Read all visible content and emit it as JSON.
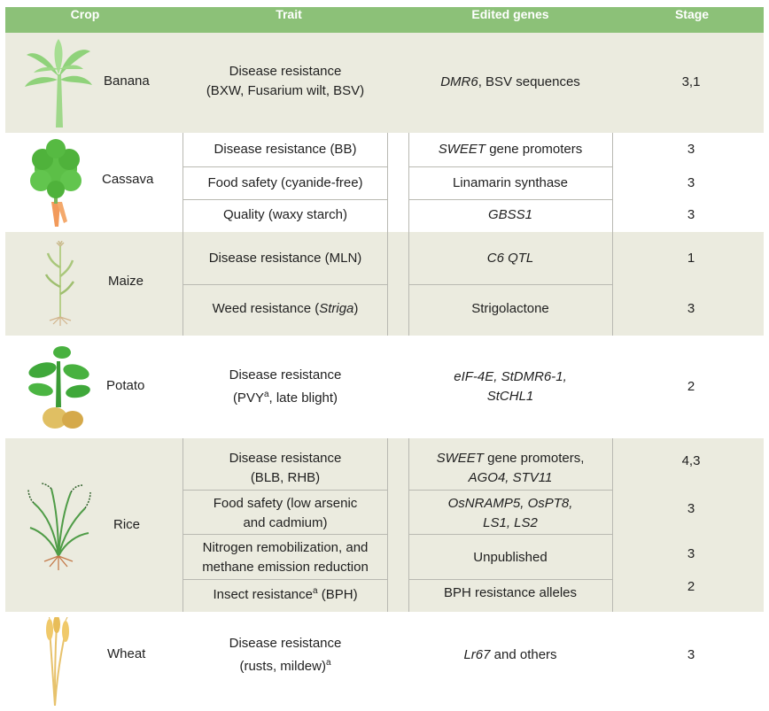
{
  "header": {
    "crop": "Crop",
    "trait": "Trait",
    "genes": "Edited genes",
    "stage": "Stage"
  },
  "colors": {
    "header_green": "#8cc178",
    "band_beige": "#ebebdf",
    "divider": "#b9b9b2"
  },
  "rows": {
    "banana": {
      "crop": "Banana",
      "icon": "banana-plant-icon",
      "traits": [
        {
          "l1": "Disease resistance",
          "l2": "(BXW, Fusarium wilt, BSV)",
          "genes_it": "DMR6",
          "genes": ", BSV sequences",
          "stage": "3,1"
        }
      ]
    },
    "cassava": {
      "crop": "Cassava",
      "icon": "cassava-plant-icon",
      "traits": [
        {
          "trait": "Disease resistance (BB)",
          "genes_it": "SWEET",
          "genes": " gene promoters",
          "stage": "3"
        },
        {
          "trait": "Food safety (cyanide-free)",
          "genes": "Linamarin synthase",
          "stage": "3"
        },
        {
          "trait": "Quality (waxy starch)",
          "genes_it": "GBSS1",
          "stage": "3"
        }
      ]
    },
    "maize": {
      "crop": "Maize",
      "icon": "maize-plant-icon",
      "traits": [
        {
          "trait": "Disease resistance (MLN)",
          "genes_it": "C6 QTL",
          "stage": "1"
        },
        {
          "trait_pre": "Weed resistance (",
          "trait_it": "Striga",
          "trait_post": ")",
          "genes": "Strigolactone",
          "stage": "3"
        }
      ]
    },
    "potato": {
      "crop": "Potato",
      "icon": "potato-plant-icon",
      "traits": [
        {
          "l1": "Disease resistance",
          "l2_pre": "(PVY",
          "sup": "a",
          "l2_post": ", late blight)",
          "genes_l1": "eIF-4E, StDMR6-1,",
          "genes_l2": "StCHL1",
          "stage": "2"
        }
      ]
    },
    "rice": {
      "crop": "Rice",
      "icon": "rice-plant-icon",
      "traits": [
        {
          "l1": "Disease resistance",
          "l2": "(BLB, RHB)",
          "genes_l1_it": "SWEET",
          "genes_l1": " gene promoters,",
          "genes_l2_it": "AGO4, STV11",
          "stage": "4,3"
        },
        {
          "l1": "Food safety (low arsenic",
          "l2": "and cadmium)",
          "genes_l1_it": "OsNRAMP5, OsPT8,",
          "genes_l2_it": "LS1, LS2",
          "stage": "3"
        },
        {
          "l1": "Nitrogen remobilization, and",
          "l2": "methane emission reduction",
          "genes": "Unpublished",
          "stage": "3"
        },
        {
          "pre": "Insect resistance",
          "sup": "a",
          "post": " (BPH)",
          "genes": "BPH resistance alleles",
          "stage": "2"
        }
      ]
    },
    "wheat": {
      "crop": "Wheat",
      "icon": "wheat-plant-icon",
      "traits": [
        {
          "l1": "Disease resistance",
          "l2": "(rusts, mildew)",
          "sup": "a",
          "genes_it": "Lr67",
          "genes": " and others",
          "stage": "3"
        }
      ]
    }
  }
}
